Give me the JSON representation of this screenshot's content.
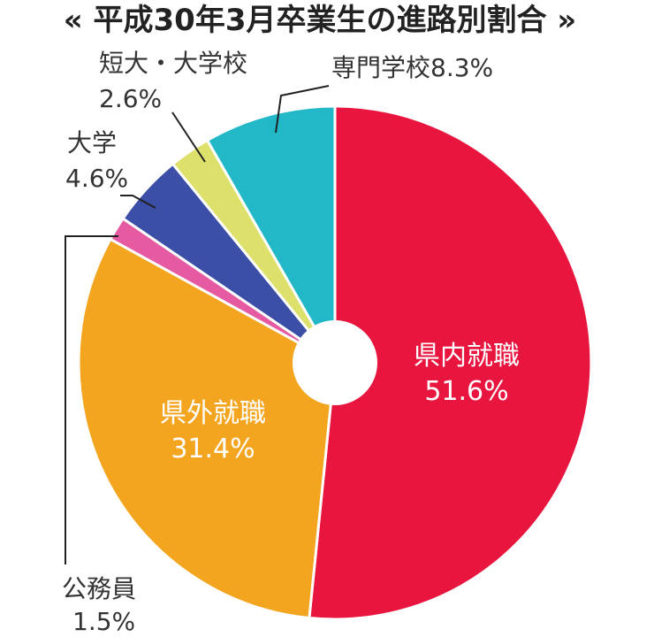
{
  "chart_data": {
    "type": "pie",
    "title": "« 平成30年3月卒業生の進路別割合 »",
    "donut_hole": true,
    "slices": [
      {
        "name": "県内就職",
        "value": 51.6,
        "label": "51.6%",
        "color": "#e8153f"
      },
      {
        "name": "県外就職",
        "value": 31.4,
        "label": "31.4%",
        "color": "#f4a520"
      },
      {
        "name": "公務員",
        "value": 1.5,
        "label": "1.5%",
        "color": "#e55aa0"
      },
      {
        "name": "大学",
        "value": 4.6,
        "label": "4.6%",
        "color": "#3a4fa5"
      },
      {
        "name": "短大・大学校",
        "value": 2.6,
        "label": "2.6%",
        "color": "#dde06a"
      },
      {
        "name": "専門学校",
        "value": 8.3,
        "label": "8.3%",
        "color": "#22b8c8"
      }
    ]
  }
}
